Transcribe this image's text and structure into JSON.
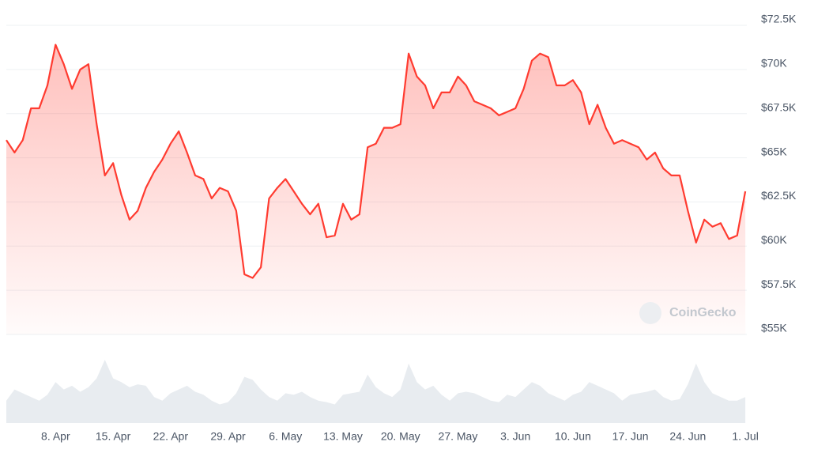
{
  "chart_data": {
    "type": "line",
    "categories": [
      "2. Apr",
      "3. Apr",
      "4. Apr",
      "5. Apr",
      "6. Apr",
      "7. Apr",
      "8. Apr",
      "9. Apr",
      "10. Apr",
      "11. Apr",
      "12. Apr",
      "13. Apr",
      "14. Apr",
      "15. Apr",
      "16. Apr",
      "17. Apr",
      "18. Apr",
      "19. Apr",
      "20. Apr",
      "21. Apr",
      "22. Apr",
      "23. Apr",
      "24. Apr",
      "25. Apr",
      "26. Apr",
      "27. Apr",
      "28. Apr",
      "29. Apr",
      "30. Apr",
      "1. May",
      "2. May",
      "3. May",
      "4. May",
      "5. May",
      "6. May",
      "7. May",
      "8. May",
      "9. May",
      "10. May",
      "11. May",
      "12. May",
      "13. May",
      "14. May",
      "15. May",
      "16. May",
      "17. May",
      "18. May",
      "19. May",
      "20. May",
      "21. May",
      "22. May",
      "23. May",
      "24. May",
      "25. May",
      "26. May",
      "27. May",
      "28. May",
      "29. May",
      "30. May",
      "31. May",
      "1. Jun",
      "2. Jun",
      "3. Jun",
      "4. Jun",
      "5. Jun",
      "6. Jun",
      "7. Jun",
      "8. Jun",
      "9. Jun",
      "10. Jun",
      "11. Jun",
      "12. Jun",
      "13. Jun",
      "14. Jun",
      "15. Jun",
      "16. Jun",
      "17. Jun",
      "18. Jun",
      "19. Jun",
      "20. Jun",
      "21. Jun",
      "22. Jun",
      "23. Jun",
      "24. Jun",
      "25. Jun",
      "26. Jun",
      "27. Jun",
      "28. Jun",
      "29. Jun",
      "30. Jun",
      "1. Jul"
    ],
    "series": [
      {
        "color": "#ff3b30",
        "values": [
          66000,
          65300,
          66000,
          67800,
          67800,
          69100,
          71400,
          70300,
          68900,
          70000,
          70300,
          66900,
          64000,
          64700,
          62900,
          61500,
          62000,
          63300,
          64200,
          64900,
          65800,
          66500,
          65300,
          64000,
          63800,
          62700,
          63300,
          63100,
          62000,
          58400,
          58200,
          58800,
          62700,
          63300,
          63800,
          63100,
          62400,
          61800,
          62400,
          60500,
          60600,
          62400,
          61500,
          61800,
          65600,
          65800,
          66700,
          66700,
          66900,
          70900,
          69600,
          69100,
          67800,
          68700,
          68700,
          69600,
          69100,
          68200,
          68000,
          67800,
          67400,
          67600,
          67800,
          68900,
          70500,
          70900,
          70700,
          69100,
          69100,
          69400,
          68700,
          66900,
          68000,
          66700,
          65800,
          66000,
          65800,
          65600,
          64900,
          65300,
          64400,
          64000,
          64000,
          62000,
          60200,
          61500,
          61100,
          61300,
          60400,
          60600,
          63100
        ]
      }
    ],
    "volume": [
      30,
      45,
      40,
      35,
      30,
      38,
      55,
      45,
      50,
      42,
      48,
      60,
      85,
      60,
      55,
      48,
      52,
      50,
      35,
      30,
      40,
      45,
      50,
      42,
      38,
      30,
      25,
      28,
      40,
      62,
      58,
      45,
      35,
      30,
      40,
      38,
      42,
      35,
      30,
      28,
      25,
      38,
      40,
      42,
      65,
      48,
      40,
      35,
      45,
      80,
      55,
      45,
      50,
      38,
      30,
      40,
      42,
      40,
      35,
      30,
      28,
      38,
      35,
      45,
      55,
      50,
      40,
      35,
      30,
      38,
      42,
      55,
      50,
      45,
      40,
      30,
      38,
      40,
      42,
      45,
      35,
      30,
      32,
      52,
      80,
      55,
      40,
      35,
      30,
      30,
      35
    ],
    "ylim": [
      55000,
      72500
    ],
    "yticks": [
      {
        "value": 55000,
        "label": "$55K"
      },
      {
        "value": 57500,
        "label": "$57.5K"
      },
      {
        "value": 60000,
        "label": "$60K"
      },
      {
        "value": 62500,
        "label": "$62.5K"
      },
      {
        "value": 65000,
        "label": "$65K"
      },
      {
        "value": 67500,
        "label": "$67.5K"
      },
      {
        "value": 70000,
        "label": "$70K"
      },
      {
        "value": 72500,
        "label": "$72.5K"
      }
    ],
    "xticks": [
      "8. Apr",
      "15. Apr",
      "22. Apr",
      "29. Apr",
      "6. May",
      "13. May",
      "20. May",
      "27. May",
      "3. Jun",
      "10. Jun",
      "17. Jun",
      "24. Jun",
      "1. Jul"
    ],
    "grid": true,
    "watermark": "CoinGecko"
  }
}
